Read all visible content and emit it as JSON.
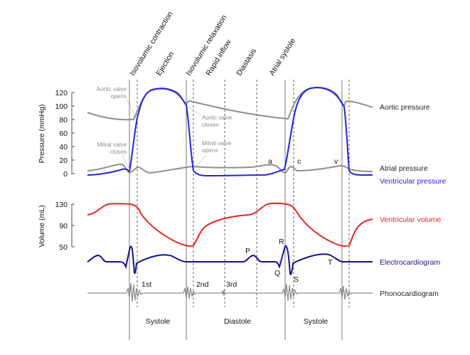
{
  "phase_labels": [
    "Isovolumic contraction",
    "Ejection",
    "Isovolumic relaxation",
    "Rapid inflow",
    "Diastasis",
    "Atrial systole"
  ],
  "pressure_axis": {
    "title": "Pressure (mmHg)",
    "ticks": [
      "120",
      "100",
      "80",
      "60",
      "40",
      "20",
      "0"
    ]
  },
  "volume_axis": {
    "title": "Volume (mL)",
    "ticks": [
      "130",
      "90",
      "50"
    ]
  },
  "curve_labels": {
    "aortic_pressure": "Aortic pressure",
    "atrial_pressure": "Atrial pressure",
    "ventricular_pressure": "Ventricular pressure",
    "ventricular_volume": "Ventricular volume",
    "electrocardiogram": "Electrocardiogram",
    "phonocardiogram": "Phonocardiogram"
  },
  "valve_annotations": {
    "aortic_opens": [
      "Aortic valve",
      "opens"
    ],
    "aortic_closes": [
      "Aortic valve",
      "closes"
    ],
    "mitral_closes": [
      "Mitral valve",
      "closes"
    ],
    "mitral_opens": [
      "Mitral valve",
      "opens"
    ]
  },
  "atrial_wave_labels": {
    "a": "a",
    "c": "c",
    "v": "v"
  },
  "ecg_wave_labels": {
    "p": "P",
    "q": "Q",
    "r": "R",
    "s": "S",
    "t": "T"
  },
  "heart_sounds": {
    "first": "1st",
    "second": "2nd",
    "third": "3rd"
  },
  "cycle_labels": {
    "systole_1": "Systole",
    "diastole": "Diastole",
    "systole_2": "Systole"
  },
  "colors": {
    "aortic": "#8f8f8f",
    "atrial": "#8f8f8f",
    "ventricular_pressure": "#2323e6",
    "volume": "#ee2222",
    "ecg": "#14148c",
    "phono": "#8f8f8f",
    "guide": "#555555"
  }
}
